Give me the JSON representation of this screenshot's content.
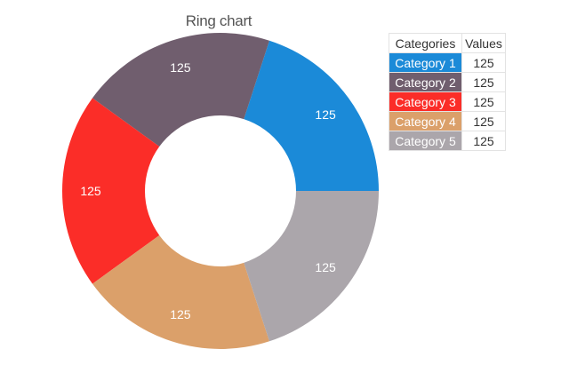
{
  "chart_data": {
    "type": "pie",
    "subtype": "ring",
    "title": "Ring chart",
    "legend": {
      "placement": "top-right",
      "header_category": "Categories",
      "header_value": "Values"
    },
    "categories": [
      "Category 1",
      "Category 2",
      "Category 3",
      "Category 4",
      "Category 5"
    ],
    "values": [
      125,
      125,
      125,
      125,
      125
    ],
    "colors": [
      "#1b8ad8",
      "#705e6e",
      "#fb2d28",
      "#dba06a",
      "#aba6ab"
    ],
    "data_labels": [
      "125",
      "125",
      "125",
      "125",
      "125"
    ]
  }
}
